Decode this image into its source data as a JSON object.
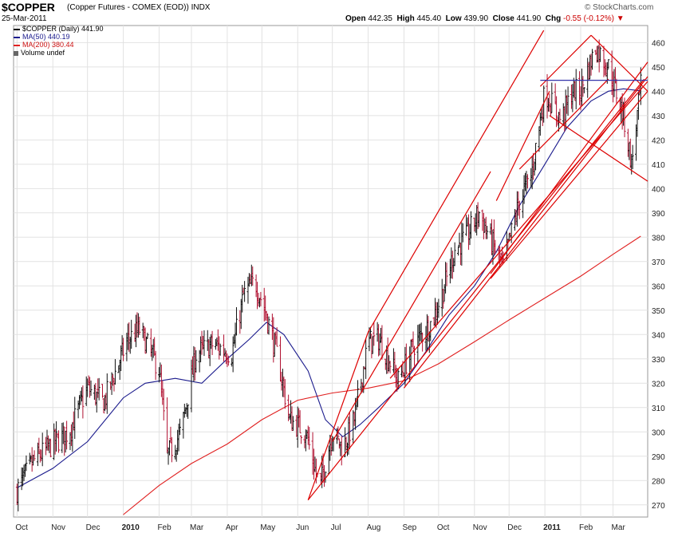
{
  "header": {
    "symbol": "$COPPER",
    "description": "(Copper Futures - COMEX (EOD)) INDX",
    "date": "25-Mar-2011",
    "brand": "© StockCharts.com",
    "open_label": "Open",
    "open": "442.35",
    "high_label": "High",
    "high": "445.40",
    "low_label": "Low",
    "low": "439.90",
    "close_label": "Close",
    "close": "441.90",
    "chg_label": "Chg",
    "chg": "-0.55 (-0.12%)"
  },
  "legend": {
    "price": "$COPPER (Daily) 441.90",
    "ma50": "MA(50) 440.19",
    "ma200": "MA(200) 380.44",
    "volume": "Volume undef"
  },
  "colors": {
    "up": "#111111",
    "down": "#b01030",
    "ma50": "#1a1a8c",
    "ma200": "#e02020",
    "trend": "#dd0000",
    "resistance": "#3333aa",
    "grid": "#e2e2e2"
  },
  "chart_data": {
    "type": "line",
    "title": "$COPPER (Daily)",
    "ylim": [
      265,
      467
    ],
    "y_ticks": [
      270,
      280,
      290,
      300,
      310,
      320,
      330,
      340,
      350,
      360,
      370,
      380,
      390,
      400,
      410,
      420,
      430,
      440,
      450,
      460
    ],
    "x_ticks": [
      "Oct",
      "Nov",
      "Dec",
      "2010",
      "Feb",
      "Mar",
      "Apr",
      "May",
      "Jun",
      "Jul",
      "Aug",
      "Sep",
      "Oct",
      "Nov",
      "Dec",
      "2011",
      "Feb",
      "Mar"
    ],
    "grid": true,
    "series": [
      {
        "name": "$COPPER",
        "dates": [
          "2009-10-01",
          "2009-10-15",
          "2009-11-01",
          "2009-11-15",
          "2009-12-01",
          "2009-12-15",
          "2010-01-05",
          "2010-01-15",
          "2010-02-01",
          "2010-02-08",
          "2010-02-20",
          "2010-03-05",
          "2010-03-20",
          "2010-04-05",
          "2010-04-15",
          "2010-04-25",
          "2010-05-05",
          "2010-05-15",
          "2010-05-25",
          "2010-06-08",
          "2010-06-20",
          "2010-07-01",
          "2010-07-10",
          "2010-07-20",
          "2010-08-01",
          "2010-08-10",
          "2010-08-20",
          "2010-08-27",
          "2010-09-10",
          "2010-09-25",
          "2010-10-05",
          "2010-10-15",
          "2010-10-25",
          "2010-11-05",
          "2010-11-16",
          "2010-11-26",
          "2010-12-01",
          "2010-12-10",
          "2010-12-20",
          "2011-01-01",
          "2011-01-15",
          "2011-01-25",
          "2011-02-01",
          "2011-02-14",
          "2011-02-25",
          "2011-03-10",
          "2011-03-17",
          "2011-03-25"
        ],
        "values": [
          276,
          288,
          295,
          300,
          318,
          312,
          338,
          342,
          326,
          290,
          300,
          332,
          336,
          332,
          356,
          362,
          348,
          330,
          305,
          300,
          277,
          300,
          293,
          305,
          337,
          338,
          329,
          321,
          336,
          345,
          358,
          375,
          380,
          390,
          378,
          368,
          378,
          395,
          405,
          440,
          428,
          440,
          440,
          458,
          450,
          430,
          410,
          441.9
        ]
      },
      {
        "name": "MA(50)",
        "dates": [
          "2009-10-01",
          "2009-11-01",
          "2009-12-01",
          "2010-01-01",
          "2010-01-20",
          "2010-02-15",
          "2010-03-10",
          "2010-04-01",
          "2010-04-20",
          "2010-05-05",
          "2010-05-20",
          "2010-06-10",
          "2010-06-25",
          "2010-07-10",
          "2010-07-25",
          "2010-08-10",
          "2010-09-01",
          "2010-09-20",
          "2010-10-10",
          "2010-11-01",
          "2010-11-20",
          "2010-12-10",
          "2011-01-01",
          "2011-01-20",
          "2011-02-10",
          "2011-02-25",
          "2011-03-10",
          "2011-03-25"
        ],
        "values": [
          277,
          285,
          296,
          314,
          320,
          322,
          320,
          330,
          338,
          345,
          340,
          325,
          305,
          298,
          303,
          310,
          320,
          333,
          348,
          360,
          374,
          393,
          410,
          425,
          436,
          440,
          441,
          440.19
        ]
      },
      {
        "name": "MA(200)",
        "dates": [
          "2010-01-01",
          "2010-02-01",
          "2010-03-01",
          "2010-04-01",
          "2010-05-01",
          "2010-06-01",
          "2010-07-01",
          "2010-08-01",
          "2010-09-01",
          "2010-10-01",
          "2010-11-01",
          "2010-12-01",
          "2011-01-01",
          "2011-02-01",
          "2011-03-01",
          "2011-03-25"
        ],
        "values": [
          266,
          278,
          287,
          295,
          305,
          313,
          316,
          318,
          321,
          328,
          337,
          346,
          355,
          364,
          373,
          380.44
        ]
      }
    ]
  }
}
